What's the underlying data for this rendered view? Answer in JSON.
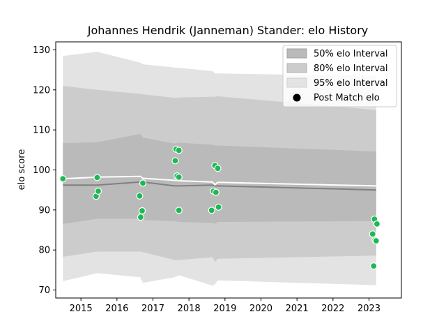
{
  "chart_data": {
    "type": "line",
    "title": "Johannes Hendrik (Janneman) Stander: elo History",
    "xlabel": "",
    "ylabel": "elo score",
    "xlim": [
      2014.3,
      2023.9
    ],
    "ylim": [
      68,
      132
    ],
    "x_ticks": [
      2015,
      2016,
      2017,
      2018,
      2019,
      2020,
      2021,
      2022,
      2023
    ],
    "y_ticks": [
      70,
      80,
      90,
      100,
      110,
      120,
      130
    ],
    "legend_position": "top-right",
    "legend": [
      "50% elo Interval",
      "80% elo Interval",
      "95% elo Interval",
      "Post Match elo"
    ],
    "colors": {
      "band95": "#e3e3e3",
      "band80": "#cccccc",
      "band50": "#bababa",
      "mean_line": "#808080",
      "median_line": "#ffffff",
      "points": "#1db954"
    },
    "interval_series": {
      "x": [
        2014.5,
        2015.45,
        2016.65,
        2016.72,
        2017.6,
        2017.72,
        2018.65,
        2018.72,
        2018.8,
        2023.2
      ],
      "mean": [
        96.2,
        96.2,
        97.0,
        97.0,
        96.0,
        96.0,
        96.2,
        96.0,
        96.0,
        95.0
      ],
      "median": [
        97.8,
        98.2,
        98.4,
        97.9,
        97.4,
        97.3,
        97.0,
        96.3,
        96.9,
        96.0
      ],
      "p50_lo": [
        86.5,
        87.8,
        87.8,
        87.5,
        87.2,
        87.0,
        86.8,
        86.5,
        87.0,
        87.2
      ],
      "p50_hi": [
        106.7,
        106.9,
        109.0,
        108.1,
        106.6,
        106.8,
        106.3,
        106.1,
        106.1,
        104.6
      ],
      "p80_lo": [
        78.3,
        79.6,
        79.6,
        79.5,
        77.5,
        77.5,
        78.2,
        77.0,
        77.8,
        78.6
      ],
      "p80_hi": [
        121.0,
        120.0,
        119.0,
        118.9,
        118.0,
        118.1,
        118.3,
        118.3,
        118.4,
        115.0
      ],
      "p95_lo": [
        72.2,
        74.2,
        73.2,
        71.8,
        73.2,
        73.7,
        71.1,
        71.4,
        72.4,
        71.2
      ],
      "p95_hi": [
        128.5,
        129.5,
        126.8,
        126.4,
        125.6,
        125.5,
        124.7,
        124.1,
        124.1,
        123.5
      ]
    },
    "points": {
      "x": [
        2014.5,
        2015.42,
        2015.45,
        2015.48,
        2016.63,
        2016.66,
        2016.7,
        2016.72,
        2017.62,
        2017.64,
        2017.67,
        2017.72,
        2017.72,
        2017.72,
        2018.63,
        2018.68,
        2018.72,
        2018.75,
        2018.8,
        2018.82,
        2023.1,
        2023.13,
        2023.15,
        2023.17,
        2023.2,
        2023.22
      ],
      "y": [
        97.8,
        93.4,
        98.1,
        94.7,
        93.5,
        88.2,
        89.8,
        96.7,
        102.3,
        105.2,
        98.5,
        98.2,
        104.9,
        89.9,
        89.9,
        94.7,
        101.1,
        94.4,
        100.4,
        90.7,
        84.0,
        76.0,
        87.7,
        82.5,
        82.3,
        86.5
      ]
    }
  }
}
